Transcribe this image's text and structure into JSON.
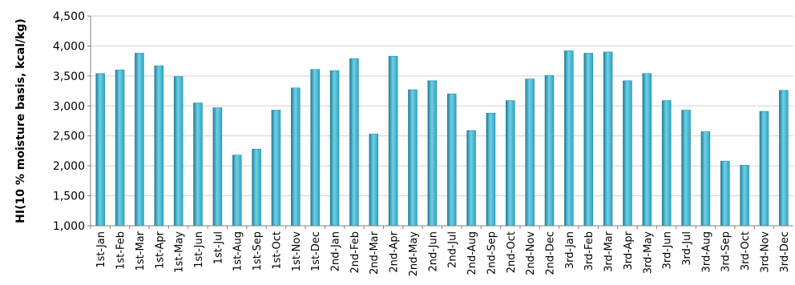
{
  "chart_data": {
    "type": "bar",
    "ylabel": "HI(10 % moisture basis, kcal/kg)",
    "xlabel": "",
    "ylim": [
      1000,
      4500
    ],
    "yticks": [
      1000,
      1500,
      2000,
      2500,
      3000,
      3500,
      4000,
      4500
    ],
    "ytick_labels": [
      "1,000",
      "1,500",
      "2,000",
      "2,500",
      "3,000",
      "3,500",
      "4,000",
      "4,500"
    ],
    "grid": true,
    "colors": {
      "bar": "#2fa6c4",
      "bar_dark": "#1d7f99",
      "bar_light": "#6fd0e6"
    },
    "categories": [
      "1st-Jan",
      "1st-Feb",
      "1st-Mar",
      "1st-Apr",
      "1st-May",
      "1st-Jun",
      "1st-Jul",
      "1st-Aug",
      "1st-Sep",
      "1st-Oct",
      "1st-Nov",
      "1st-Dec",
      "2nd-Jan",
      "2nd-Feb",
      "2nd-Mar",
      "2nd-Apr",
      "2nd-May",
      "2nd-Jun",
      "2nd-Jul",
      "2nd-Aug",
      "2nd-Sep",
      "2nd-Oct",
      "2nd-Nov",
      "2nd-Dec",
      "3rd-Jan",
      "3rd-Feb",
      "3rd-Mar",
      "3rd-Apr",
      "3rd-May",
      "3rd-Jun",
      "3rd-Jul",
      "3rd-Aug",
      "3rd-Sep",
      "3rd-Oct",
      "3rd-Nov",
      "3rd-Dec"
    ],
    "values": [
      3540,
      3600,
      3880,
      3670,
      3490,
      3050,
      2970,
      2180,
      2280,
      2930,
      3300,
      3610,
      3590,
      3790,
      2530,
      3830,
      3270,
      3420,
      3200,
      2590,
      2880,
      3090,
      3450,
      3510,
      3920,
      3880,
      3900,
      3420,
      3540,
      3090,
      2930,
      2570,
      2080,
      2010,
      2910,
      3260
    ]
  }
}
